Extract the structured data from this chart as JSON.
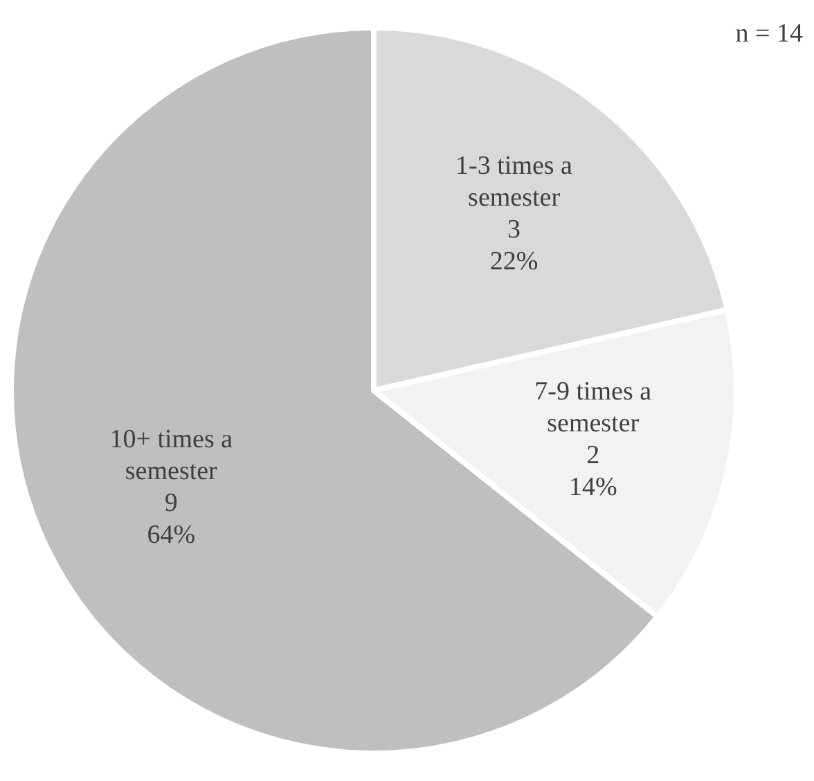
{
  "chart_data": {
    "type": "pie",
    "annotations": [
      "n = 14"
    ],
    "categories": [
      "1-3 times a semester",
      "7-9 times a semester",
      "10+ times a semester"
    ],
    "values": [
      3,
      2,
      9
    ],
    "colors": [
      "#d9d9d9",
      "#f2f2f2",
      "#bfbfbf"
    ],
    "value_labels": [
      "3\n22%",
      "2\n14%",
      "9\n64%"
    ]
  }
}
